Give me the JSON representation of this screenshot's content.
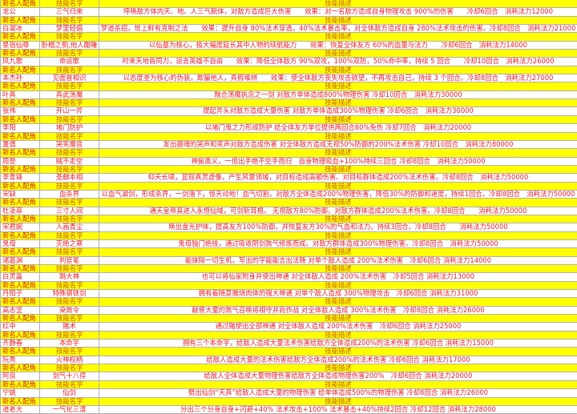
{
  "header": {
    "role": "新名人配角",
    "skill": "技能名字",
    "desc": "技能描述"
  },
  "colors": {
    "header_bg": "#ffff00",
    "text": "#e8202a"
  },
  "rows": [
    {
      "name": "龙公",
      "skill": "三气归来",
      "desc": "呼唤敌方体内天、地、人三气脱体，对敌方造成巨大伤害　　效果：对一名敌方造成自身物理攻击 900%的伤害　　冷却6回合　消耗法力12000"
    },
    {
      "name": "白凝冰",
      "skill": "梦里轻倡",
      "desc": "梦道杀招，世上鲜有克制之法　　效果：提升自身 80%法术穿透，40%法术暴击率，对全体敌方造成自身 280%法术攻击的伤害。冷却8回合　消耗法力21000"
    },
    {
      "name": "星宿仙尊",
      "skill": "卧榻之侧,他人酣睡",
      "desc": "以仙墓为核心，极大幅度延长其中人物的续航能力　　效果：恢复全体友方 60%的血量与法力　　冷却6回合　消耗法力14000"
    },
    {
      "name": "凤九歌",
      "skill": "命运歌",
      "desc": "时来天地皆同力，运去英雄不自由　　效果：降低全体敌方 90%双攻，100%双防，50%命中率，持续 5 回合　　冷却10回合　消耗法力26000"
    },
    {
      "name": "本杰孙",
      "skill": "见面曾相识",
      "desc": "以态度垄为核心的伪装，欺骗他人，真假难辨　　效果：使全体敌方丧失攻击欲望，不再攻击自己，持续 3 个回合。冷却8回合　消耗法力27000"
    },
    {
      "name": "叶真",
      "skill": "真武荡魔",
      "desc": "融合荡魔执念之一剑 对敌方单体造成800%物理伤害 冷却10回合　消耗法力30000"
    },
    {
      "name": "张伟",
      "skill": "开山一斧",
      "desc": "提起斧头对敌方造成大量伤害 对敌方单体造成300%物理伤害 冷却6回合　消耗法力30000"
    },
    {
      "name": "李阳",
      "skill": "堵门防护",
      "desc": "以堵门鬼之力形成防护 给全体友方单位提供两回合80%免伤 冷却7回合　消耗法力20000"
    },
    {
      "name": "董倩",
      "skill": "哭笑魔音",
      "desc": "发出摄魂的哭声和笑声对敌方造成伤害 对全体敌方造成无视50%防御的200%法术伤害 冷却10回合　消耗法力80000"
    },
    {
      "name": "周登",
      "skill": "贼不走空",
      "desc": "神偷奥义，一但出手绝不空手而归　自身物理吸血+100%持续三回合 冷却8回合　消耗法力50000"
    },
    {
      "name": "李青锋",
      "skill": "圣麒本相",
      "desc": "仰天长啸，显现真灵虚像，产生风雷领域，对目标造成高额伤害。对目标群体造成200%法术伤害。冷却8回合　消耗法力50000"
    },
    {
      "name": "宋缺",
      "skill": "血杀界",
      "desc": "以血气凝剑，形成杀界，一剑落下，惊天动地！血气切割，对敌方全体造成200%物理伤害，降低30%的防御和速度，持续1回合。冷却8回合　消耗法力50000"
    },
    {
      "name": "杜凌菲",
      "skill": "三寸人间",
      "desc": "通天皇帝其进入永恒仙域，可剑斩耳根。 无视敌方80%防御，对敌方群体造成200%法术伤害。冷却8回合　　消耗法力50000"
    },
    {
      "name": "宋君婉",
      "skill": "入画青尘",
      "desc": "唤出金光护体，提高友方100%防御，并恢复友方30%的气血和法力。持续3回合。冷却8回合　　消耗法力50000"
    },
    {
      "name": "鬼母",
      "skill": "灭绝之寒",
      "desc": "鬼母独门绝技，通过吸收阴剑煞气修炼而成。对敌方群体造成300%物理伤害。冷却8回合　消耗法力50000"
    },
    {
      "name": "诸葛渊",
      "skill": "判官笔",
      "desc": "能抹除一切生机，写出的字能能言出法随 对单个敌人造成 200%法术伤害　冷却6回合 消耗法力14000"
    },
    {
      "name": "白灵淼",
      "skill": "跳大神",
      "desc": "也可以将仙家附身并使出神通 对全体敌人造成 200%法术伤害　冷却5回合 消耗法力13000"
    },
    {
      "name": "丹阳子",
      "skill": "特殊钢铁剑",
      "desc": "拥有着随意撤烧肉体的强大神通 对单个敌人造成 300%物理攻击　冷却6回合 消耗法力31000"
    },
    {
      "name": "高志坚",
      "skill": "染煞令",
      "desc": "献祭大量的煞气召唤将相守并肩作战 对全体敌人造成 300%法术伤害　冷却8回合 消耗法力26000"
    },
    {
      "name": "红中",
      "skill": "赌术",
      "desc": "通过赌使出全部神通 对全体敌人造成 200%法术伤害　冷却6回合 消耗法力25000"
    },
    {
      "name": "齐静春",
      "skill": "本命字",
      "desc": "拥有三个本命字，给敌人造成大量法术伤害给敌方全体造成200%的法术伤害 冷却6回合 消耗法力15000"
    },
    {
      "name": "阮秀",
      "skill": "火神权柄",
      "desc": "给敌人造成大量的法术伤害给敌方全体造成200%的法术伤害 冷却6回合 消耗法力17000"
    },
    {
      "name": "阿良",
      "skill": "剑气十八停",
      "desc": "给敌人全体造成大量物理伤害给敌方全体造成物理伤害200%　冷却6回合 消耗法力20000"
    },
    {
      "name": "宁姚",
      "skill": "仙剑",
      "desc": "劈出仙剑“天真”给敌人造成大量的物理伤害 给单体造成500%的物理伤害 冷却8回合 消耗法力26000"
    },
    {
      "name": "道老大",
      "skill": "一气化三清",
      "desc": "分出三个分身自身+闪避+40% 法术攻击+100% 法术暴击+40%持续2回合 冷却12回合 消耗法力28000"
    }
  ]
}
